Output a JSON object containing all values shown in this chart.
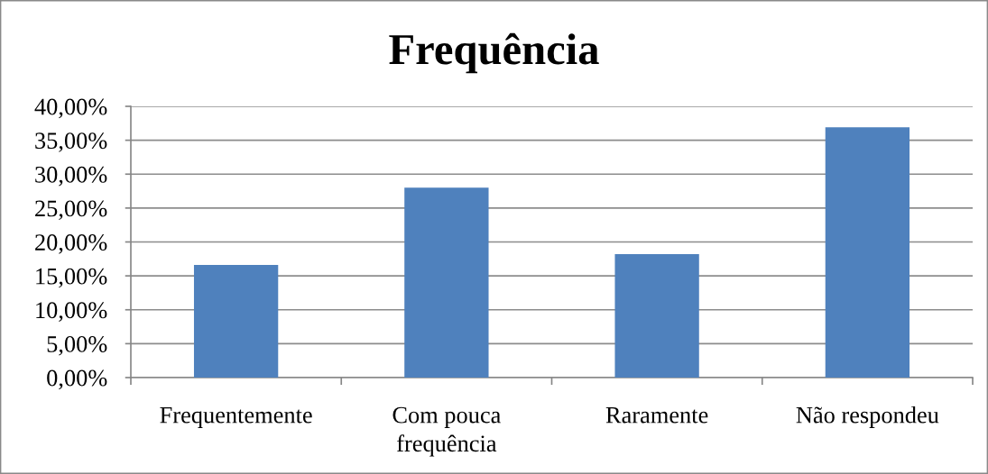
{
  "chart_data": {
    "type": "bar",
    "title": "Frequência",
    "categories": [
      "Frequentemente",
      "Com pouca\nfrequência",
      "Raramente",
      "Não respondeu"
    ],
    "values": [
      16.6,
      28.0,
      18.2,
      36.9
    ],
    "color": "#4f81bd",
    "ylim": [
      0,
      40
    ],
    "yticks": [
      {
        "value": 0,
        "label": "0,00%"
      },
      {
        "value": 5,
        "label": "5,00%"
      },
      {
        "value": 10,
        "label": "10,00%"
      },
      {
        "value": 15,
        "label": "15,00%"
      },
      {
        "value": 20,
        "label": "20,00%"
      },
      {
        "value": 25,
        "label": "25,00%"
      },
      {
        "value": 30,
        "label": "30,00%"
      },
      {
        "value": 35,
        "label": "35,00%"
      },
      {
        "value": 40,
        "label": "40,00%"
      }
    ],
    "grid": "y",
    "legend": false
  }
}
